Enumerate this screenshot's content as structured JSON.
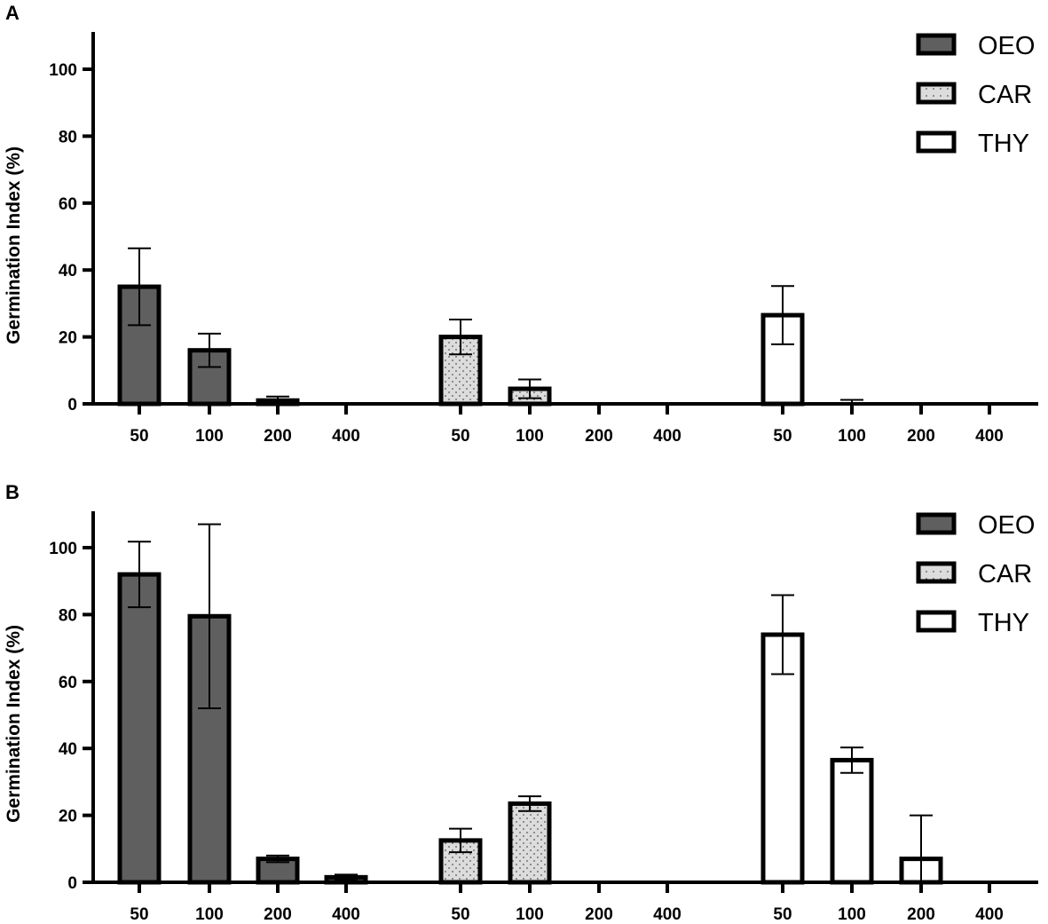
{
  "chart_data": [
    {
      "type": "bar",
      "panel": "A",
      "ylabel": "Germination  Index (%)",
      "ylim": [
        0,
        110
      ],
      "yticks": [
        0,
        20,
        40,
        60,
        80,
        100
      ],
      "categories": [
        "50",
        "100",
        "200",
        "400"
      ],
      "grid": false,
      "legend_position": "top-right",
      "legend": [
        "OEO",
        "CAR",
        "THY"
      ],
      "series": [
        {
          "name": "OEO",
          "values": [
            35,
            16,
            1,
            0
          ],
          "errors": [
            11.5,
            5,
            1.2,
            0
          ]
        },
        {
          "name": "CAR",
          "values": [
            20,
            4.5,
            0,
            0
          ],
          "errors": [
            5.2,
            2.8,
            0,
            0
          ]
        },
        {
          "name": "THY",
          "values": [
            26.5,
            0,
            0,
            0
          ],
          "errors": [
            8.7,
            1.2,
            0,
            0
          ]
        }
      ]
    },
    {
      "type": "bar",
      "panel": "B",
      "ylabel": "Germination  Index (%)",
      "ylim": [
        0,
        110
      ],
      "yticks": [
        0,
        20,
        40,
        60,
        80,
        100
      ],
      "categories": [
        "50",
        "100",
        "200",
        "400"
      ],
      "grid": false,
      "legend_position": "top-right",
      "legend": [
        "OEO",
        "CAR",
        "THY"
      ],
      "series": [
        {
          "name": "OEO",
          "values": [
            92,
            79.5,
            7,
            1.5
          ],
          "errors": [
            9.8,
            27.5,
            1,
            0.8
          ]
        },
        {
          "name": "CAR",
          "values": [
            12.5,
            23.5,
            0,
            0
          ],
          "errors": [
            3.5,
            2.2,
            0,
            0
          ]
        },
        {
          "name": "THY",
          "values": [
            74,
            36.5,
            7,
            0
          ],
          "errors": [
            11.8,
            3.8,
            13,
            0
          ]
        }
      ]
    }
  ],
  "styles": {
    "OEO": {
      "fill": "#5f5f5f",
      "pattern": "solid"
    },
    "CAR": {
      "fill": "#dcdcdc",
      "pattern": "dots"
    },
    "THY": {
      "fill": "#ffffff",
      "pattern": "none"
    },
    "stroke": "#000000"
  }
}
